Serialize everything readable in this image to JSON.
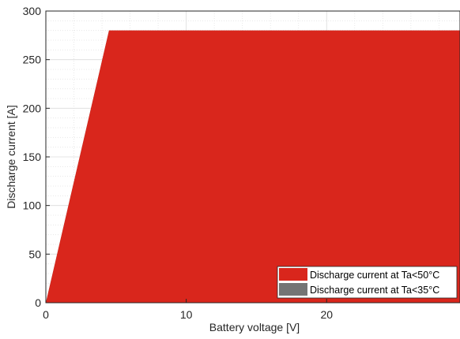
{
  "chart_data": {
    "type": "area",
    "title": "",
    "xlabel": "Battery voltage [V]",
    "ylabel": "Discharge current [A]",
    "xlim": [
      0,
      29.5
    ],
    "ylim": [
      0,
      300
    ],
    "x_ticks": [
      0,
      10,
      20
    ],
    "y_ticks": [
      0,
      50,
      100,
      150,
      200,
      250,
      300
    ],
    "grid": true,
    "legend_position": "bottom-right",
    "series": [
      {
        "name": "Discharge current at Ta<50°C",
        "color": "#D9261C",
        "x": [
          0,
          4.5,
          29.5
        ],
        "y": [
          0,
          280,
          280
        ]
      },
      {
        "name": "Discharge current at Ta<35°C",
        "color": "#747474",
        "x": [
          0,
          4.5,
          29.5
        ],
        "y": [
          0,
          280,
          280
        ]
      }
    ]
  }
}
